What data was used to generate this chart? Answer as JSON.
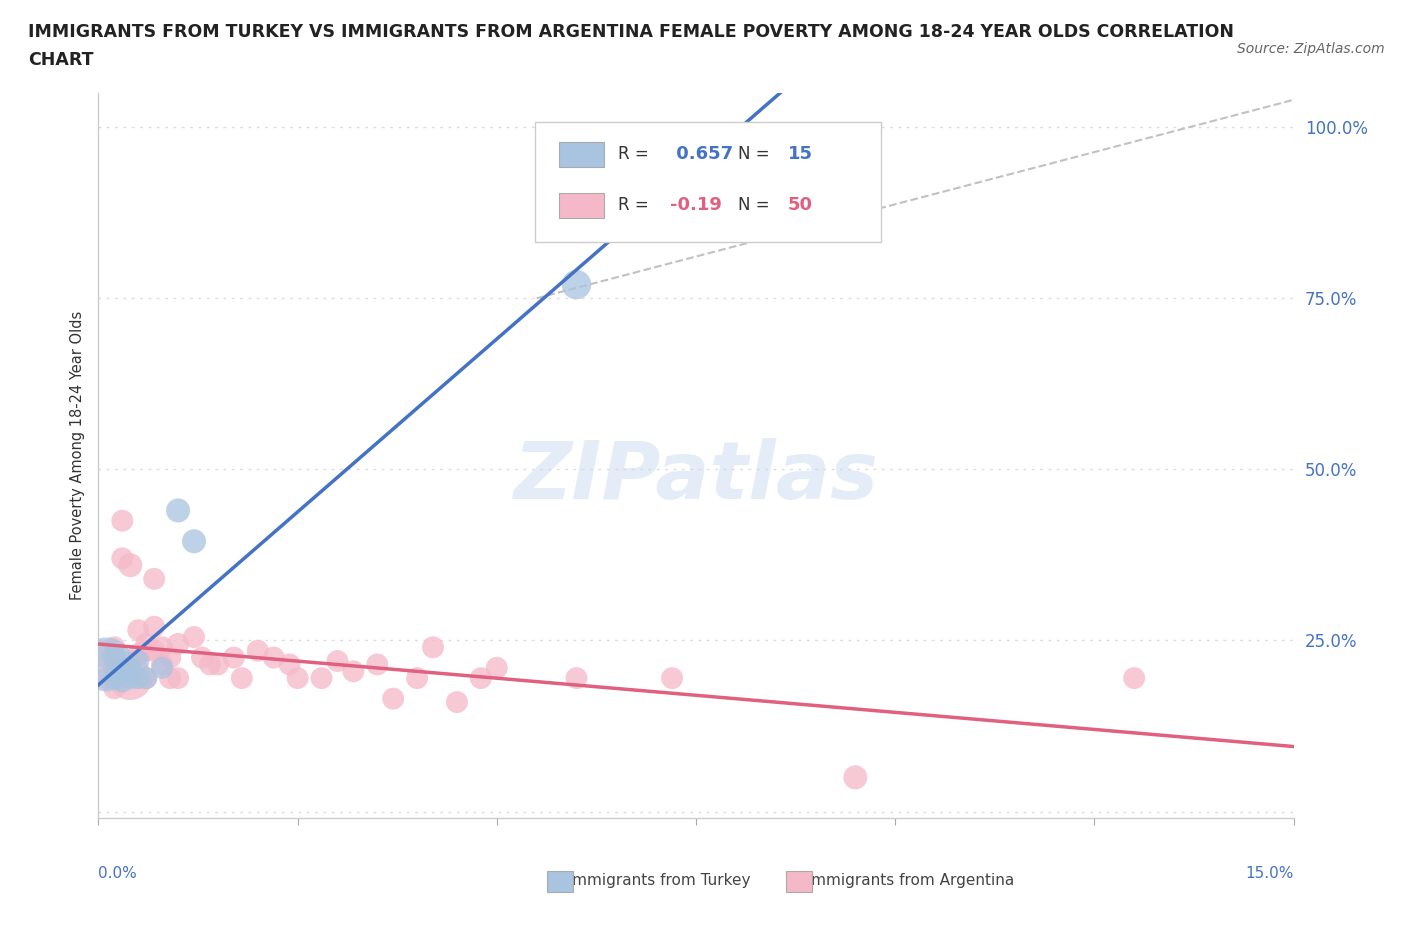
{
  "title_line1": "IMMIGRANTS FROM TURKEY VS IMMIGRANTS FROM ARGENTINA FEMALE POVERTY AMONG 18-24 YEAR OLDS CORRELATION",
  "title_line2": "CHART",
  "source": "Source: ZipAtlas.com",
  "ylabel": "Female Poverty Among 18-24 Year Olds",
  "turkey_color": "#a8c4e0",
  "argentina_color": "#f5b8c8",
  "turkey_line_color": "#4472c4",
  "argentina_line_color": "#e06080",
  "dashed_line_color": "#bbbbbb",
  "R_turkey": 0.657,
  "N_turkey": 15,
  "R_argentina": -0.19,
  "N_argentina": 50,
  "xlim": [
    0.0,
    0.15
  ],
  "ylim": [
    -0.01,
    1.05
  ],
  "ytick_positions": [
    0.0,
    0.25,
    0.5,
    0.75,
    1.0
  ],
  "ytick_labels": [
    "",
    "25.0%",
    "50.0%",
    "75.0%",
    "100.0%"
  ],
  "turkey_x": [
    0.001,
    0.002,
    0.002,
    0.003,
    0.003,
    0.003,
    0.004,
    0.004,
    0.005,
    0.005,
    0.006,
    0.008,
    0.01,
    0.012,
    0.06
  ],
  "turkey_y": [
    0.215,
    0.225,
    0.195,
    0.205,
    0.21,
    0.19,
    0.21,
    0.195,
    0.22,
    0.195,
    0.195,
    0.21,
    0.44,
    0.395,
    0.77
  ],
  "turkey_size": [
    300,
    60,
    50,
    50,
    50,
    50,
    50,
    50,
    50,
    50,
    50,
    50,
    60,
    60,
    90
  ],
  "argentina_x": [
    0.001,
    0.001,
    0.002,
    0.002,
    0.002,
    0.003,
    0.003,
    0.003,
    0.004,
    0.004,
    0.004,
    0.005,
    0.005,
    0.005,
    0.006,
    0.006,
    0.006,
    0.007,
    0.007,
    0.007,
    0.008,
    0.008,
    0.009,
    0.009,
    0.01,
    0.01,
    0.012,
    0.013,
    0.014,
    0.015,
    0.017,
    0.018,
    0.02,
    0.022,
    0.024,
    0.025,
    0.028,
    0.03,
    0.032,
    0.035,
    0.037,
    0.04,
    0.042,
    0.045,
    0.048,
    0.05,
    0.06,
    0.072,
    0.095,
    0.13
  ],
  "argentina_y": [
    0.23,
    0.195,
    0.24,
    0.21,
    0.18,
    0.425,
    0.37,
    0.195,
    0.36,
    0.22,
    0.195,
    0.265,
    0.23,
    0.195,
    0.245,
    0.235,
    0.195,
    0.34,
    0.27,
    0.235,
    0.24,
    0.215,
    0.225,
    0.195,
    0.245,
    0.195,
    0.255,
    0.225,
    0.215,
    0.215,
    0.225,
    0.195,
    0.235,
    0.225,
    0.215,
    0.195,
    0.195,
    0.22,
    0.205,
    0.215,
    0.165,
    0.195,
    0.24,
    0.16,
    0.195,
    0.21,
    0.195,
    0.195,
    0.05,
    0.195
  ],
  "argentina_size": [
    80,
    50,
    50,
    50,
    50,
    50,
    50,
    50,
    60,
    50,
    200,
    50,
    50,
    50,
    50,
    50,
    50,
    50,
    50,
    50,
    50,
    50,
    50,
    50,
    50,
    50,
    50,
    50,
    50,
    50,
    50,
    50,
    50,
    50,
    50,
    50,
    50,
    50,
    50,
    50,
    50,
    50,
    50,
    50,
    50,
    50,
    50,
    50,
    60,
    50
  ],
  "background_color": "#ffffff",
  "grid_color": "#dddddd",
  "watermark": "ZIPatlas"
}
